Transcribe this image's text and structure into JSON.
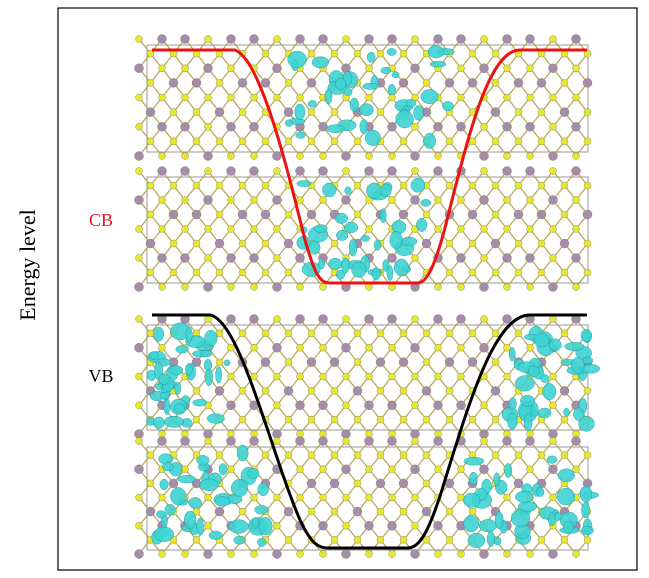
{
  "axis_label": "Energy level",
  "bands": [
    {
      "label": "CB"
    },
    {
      "label": "VB"
    }
  ]
}
